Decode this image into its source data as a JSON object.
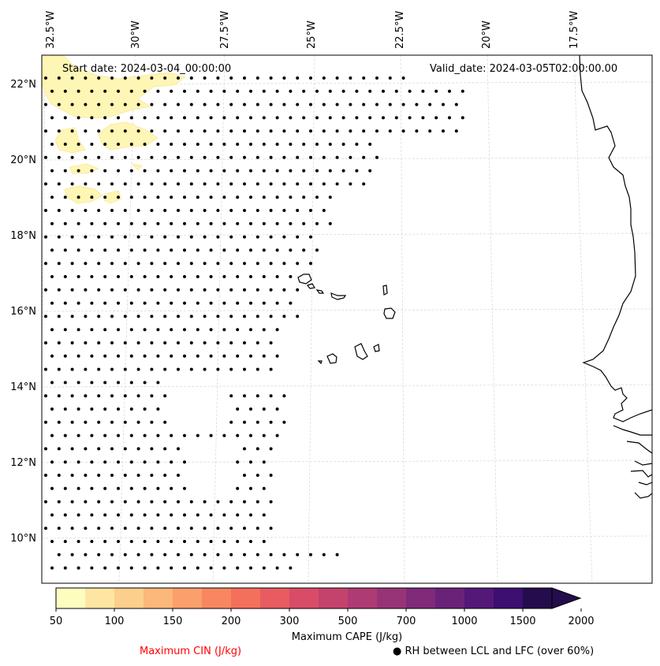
{
  "map": {
    "start_label": "Start date: 2024-03-04_00:00:00",
    "valid_label": "Valid_date: 2024-03-05T02:00:00.00",
    "lon_labels": [
      "32.5°W",
      "30°W",
      "27.5°W",
      "25°W",
      "22.5°W",
      "20°W",
      "17.5°W"
    ],
    "lat_labels": [
      "22°N",
      "20°N",
      "18°N",
      "16°N",
      "14°N",
      "12°N",
      "10°N"
    ]
  },
  "colorbar": {
    "title": "Maximum CAPE (J/kg)",
    "ticks": [
      "50",
      "100",
      "150",
      "200",
      "300",
      "500",
      "700",
      "1000",
      "1500",
      "2000"
    ],
    "colors": [
      "#fefdc0",
      "#fee6a2",
      "#fdcf8c",
      "#fcb77a",
      "#fb9f6c",
      "#f88761",
      "#f3705c",
      "#e85c61",
      "#d84c67",
      "#c4436d",
      "#ae3b73",
      "#973477",
      "#802a79",
      "#6a2279",
      "#531878",
      "#3c0f70",
      "#250c4d"
    ]
  },
  "legend": {
    "cin_label": "Maximum CIN (J/kg)",
    "cin_color": "#ff0000",
    "rh_label": "● RH between LCL and LFC (over 60%)"
  }
}
